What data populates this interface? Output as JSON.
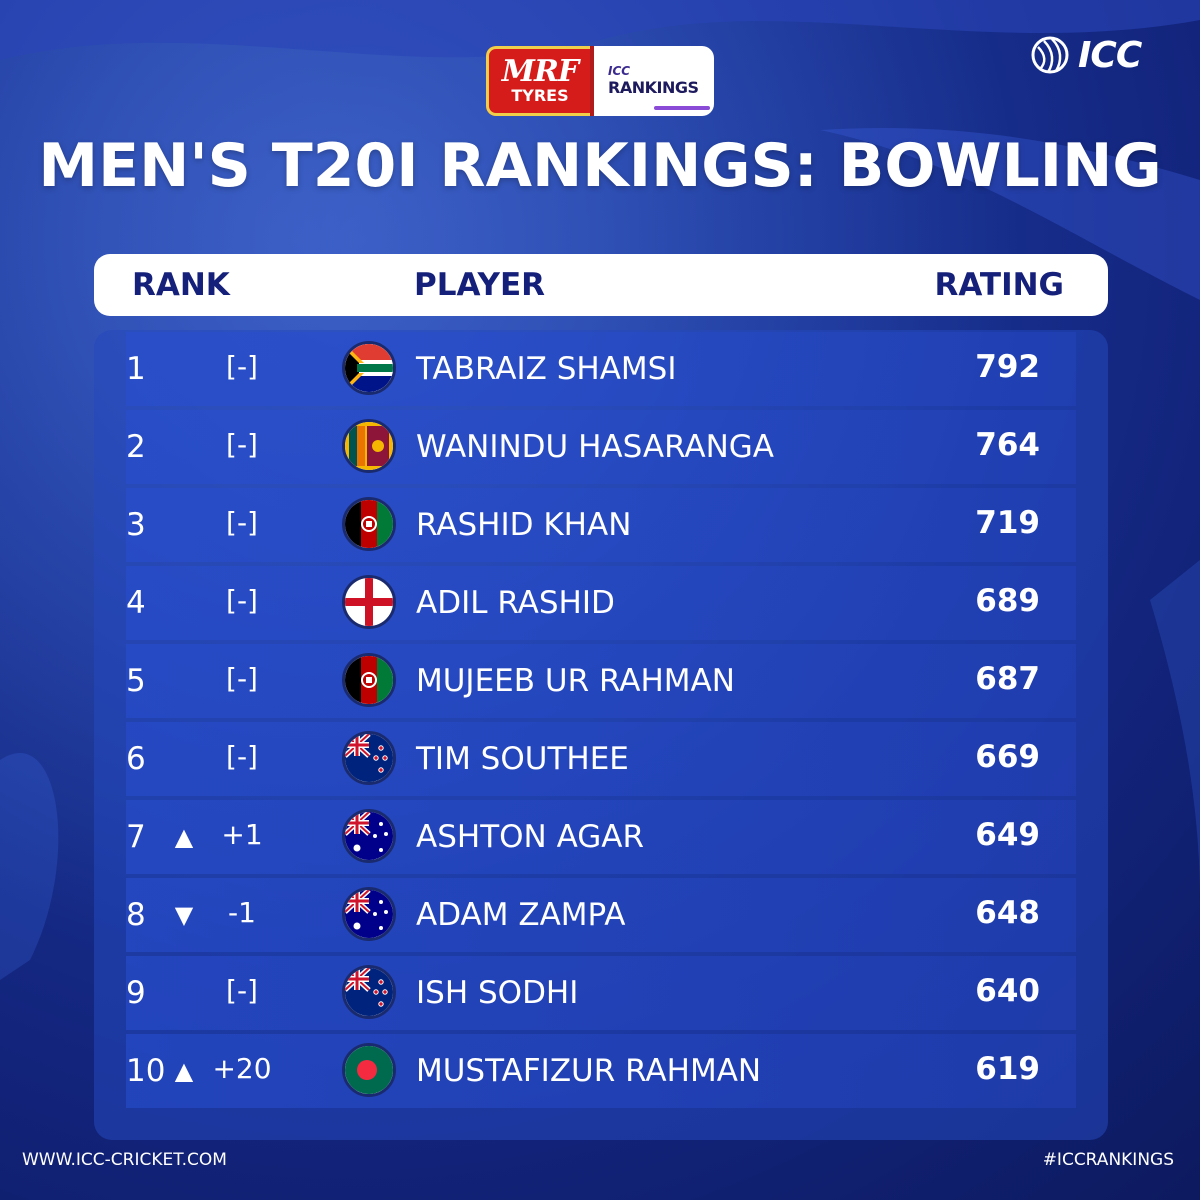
{
  "sponsor": {
    "mrf_word": "MRF",
    "mrf_tyres": "TYRES",
    "icc_mini": "ICC",
    "rankings_word": "RANKINGS"
  },
  "brand": {
    "logo_text": "ICC"
  },
  "title": "MEN'S T20I RANKINGS: BOWLING",
  "table": {
    "headers": {
      "rank": "RANK",
      "player": "PLAYER",
      "rating": "RATING"
    },
    "rows": [
      {
        "rank": "1",
        "movement": "none",
        "change": "[-]",
        "flag": "south-africa",
        "player": "TABRAIZ SHAMSI",
        "rating": "792"
      },
      {
        "rank": "2",
        "movement": "none",
        "change": "[-]",
        "flag": "sri-lanka",
        "player": "WANINDU HASARANGA",
        "rating": "764"
      },
      {
        "rank": "3",
        "movement": "none",
        "change": "[-]",
        "flag": "afghanistan",
        "player": "RASHID KHAN",
        "rating": "719"
      },
      {
        "rank": "4",
        "movement": "none",
        "change": "[-]",
        "flag": "england",
        "player": "ADIL RASHID",
        "rating": "689"
      },
      {
        "rank": "5",
        "movement": "none",
        "change": "[-]",
        "flag": "afghanistan",
        "player": "MUJEEB UR RAHMAN",
        "rating": "687"
      },
      {
        "rank": "6",
        "movement": "none",
        "change": "[-]",
        "flag": "new-zealand",
        "player": "TIM SOUTHEE",
        "rating": "669"
      },
      {
        "rank": "7",
        "movement": "up",
        "change": "+1",
        "flag": "australia",
        "player": "ASHTON AGAR",
        "rating": "649"
      },
      {
        "rank": "8",
        "movement": "down",
        "change": "-1",
        "flag": "australia",
        "player": "ADAM ZAMPA",
        "rating": "648"
      },
      {
        "rank": "9",
        "movement": "none",
        "change": "[-]",
        "flag": "new-zealand",
        "player": "ISH SODHI",
        "rating": "640"
      },
      {
        "rank": "10",
        "movement": "up",
        "change": "+20",
        "flag": "bangladesh",
        "player": "MUSTAFIZUR RAHMAN",
        "rating": "619"
      }
    ]
  },
  "icons": {
    "up": "▲",
    "down": "▼"
  },
  "footer": {
    "website": "WWW.ICC-CRICKET.COM",
    "hashtag": "#ICCRANKINGS"
  },
  "colors": {
    "header_text": "#15207a",
    "mrf_red": "#d61b1b",
    "panel": "#2448be"
  }
}
